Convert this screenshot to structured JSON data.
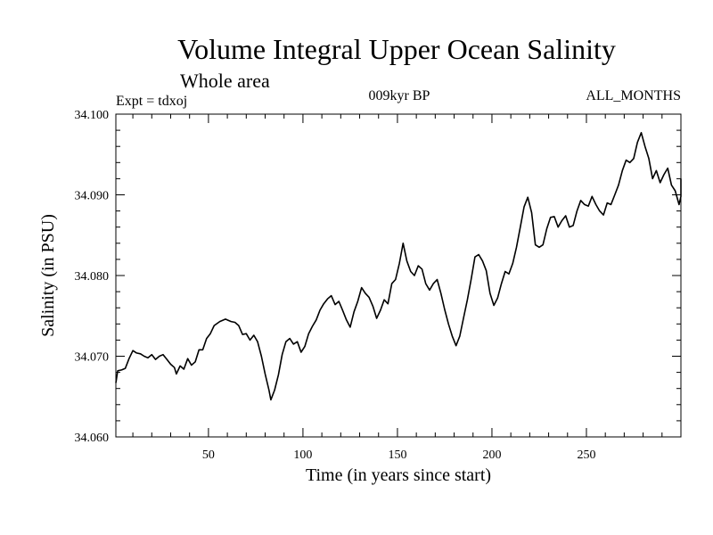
{
  "chart_data": {
    "type": "line",
    "title": "Volume Integral Upper Ocean Salinity",
    "subtitle": "Whole area",
    "expt_label": "Expt = tdxoj",
    "period_label": "009kyr BP",
    "months_label": "ALL_MONTHS",
    "xlabel": "Time (in years since start)",
    "ylabel": "Salinity (in PSU)",
    "xlim": [
      1,
      300
    ],
    "ylim": [
      34.06,
      34.1
    ],
    "x_ticks": [
      50,
      100,
      150,
      200,
      250
    ],
    "x_tick_labels": [
      "50",
      "100",
      "150",
      "200",
      "250"
    ],
    "y_ticks": [
      34.06,
      34.07,
      34.08,
      34.09,
      34.1
    ],
    "y_tick_labels": [
      "34.060",
      "34.070",
      "34.080",
      "34.090",
      "34.100"
    ],
    "grid": false,
    "series": [
      {
        "color": "#000000",
        "points": [
          [
            1,
            34.0667
          ],
          [
            2,
            34.0682
          ],
          [
            4,
            34.0683
          ],
          [
            6,
            34.0685
          ],
          [
            8,
            34.0697
          ],
          [
            10,
            34.0707
          ],
          [
            12,
            34.0704
          ],
          [
            14,
            34.0703
          ],
          [
            16,
            34.07
          ],
          [
            18,
            34.0698
          ],
          [
            20,
            34.0702
          ],
          [
            22,
            34.0696
          ],
          [
            24,
            34.07
          ],
          [
            26,
            34.0702
          ],
          [
            28,
            34.0696
          ],
          [
            30,
            34.069
          ],
          [
            32,
            34.0686
          ],
          [
            33,
            34.0678
          ],
          [
            35,
            34.0688
          ],
          [
            37,
            34.0684
          ],
          [
            39,
            34.0697
          ],
          [
            41,
            34.0689
          ],
          [
            43,
            34.0693
          ],
          [
            45,
            34.0708
          ],
          [
            47,
            34.0708
          ],
          [
            49,
            34.0722
          ],
          [
            51,
            34.0728
          ],
          [
            53,
            34.0738
          ],
          [
            56,
            34.0743
          ],
          [
            59,
            34.0746
          ],
          [
            62,
            34.0743
          ],
          [
            64,
            34.0742
          ],
          [
            66,
            34.0738
          ],
          [
            68,
            34.0727
          ],
          [
            70,
            34.0728
          ],
          [
            72,
            34.072
          ],
          [
            74,
            34.0726
          ],
          [
            76,
            34.0718
          ],
          [
            78,
            34.07
          ],
          [
            80,
            34.0678
          ],
          [
            82,
            34.0658
          ],
          [
            83,
            34.0646
          ],
          [
            85,
            34.0658
          ],
          [
            87,
            34.0677
          ],
          [
            89,
            34.0702
          ],
          [
            91,
            34.0718
          ],
          [
            93,
            34.0722
          ],
          [
            95,
            34.0715
          ],
          [
            97,
            34.0718
          ],
          [
            99,
            34.0705
          ],
          [
            101,
            34.0712
          ],
          [
            103,
            34.0728
          ],
          [
            105,
            34.0737
          ],
          [
            107,
            34.0745
          ],
          [
            109,
            34.0757
          ],
          [
            111,
            34.0765
          ],
          [
            113,
            34.0771
          ],
          [
            115,
            34.0775
          ],
          [
            117,
            34.0764
          ],
          [
            119,
            34.0768
          ],
          [
            121,
            34.0757
          ],
          [
            123,
            34.0745
          ],
          [
            125,
            34.0736
          ],
          [
            127,
            34.0755
          ],
          [
            129,
            34.0768
          ],
          [
            131,
            34.0785
          ],
          [
            133,
            34.0778
          ],
          [
            135,
            34.0773
          ],
          [
            137,
            34.0762
          ],
          [
            139,
            34.0747
          ],
          [
            141,
            34.0757
          ],
          [
            143,
            34.077
          ],
          [
            145,
            34.0765
          ],
          [
            147,
            34.079
          ],
          [
            149,
            34.0795
          ],
          [
            151,
            34.0815
          ],
          [
            153,
            34.084
          ],
          [
            155,
            34.0818
          ],
          [
            157,
            34.0805
          ],
          [
            159,
            34.08
          ],
          [
            161,
            34.0812
          ],
          [
            163,
            34.0808
          ],
          [
            165,
            34.079
          ],
          [
            167,
            34.0782
          ],
          [
            169,
            34.079
          ],
          [
            171,
            34.0795
          ],
          [
            173,
            34.0778
          ],
          [
            175,
            34.0758
          ],
          [
            177,
            34.074
          ],
          [
            179,
            34.0725
          ],
          [
            181,
            34.0713
          ],
          [
            183,
            34.0725
          ],
          [
            185,
            34.0748
          ],
          [
            187,
            34.077
          ],
          [
            189,
            34.0795
          ],
          [
            191,
            34.0823
          ],
          [
            193,
            34.0826
          ],
          [
            195,
            34.0818
          ],
          [
            197,
            34.0806
          ],
          [
            199,
            34.0778
          ],
          [
            201,
            34.0763
          ],
          [
            203,
            34.0772
          ],
          [
            205,
            34.079
          ],
          [
            207,
            34.0805
          ],
          [
            209,
            34.0802
          ],
          [
            211,
            34.0815
          ],
          [
            213,
            34.0835
          ],
          [
            215,
            34.086
          ],
          [
            217,
            34.0885
          ],
          [
            219,
            34.0897
          ],
          [
            221,
            34.0878
          ],
          [
            223,
            34.0838
          ],
          [
            225,
            34.0835
          ],
          [
            227,
            34.0838
          ],
          [
            229,
            34.0858
          ],
          [
            231,
            34.0872
          ],
          [
            233,
            34.0873
          ],
          [
            235,
            34.086
          ],
          [
            237,
            34.0868
          ],
          [
            239,
            34.0874
          ],
          [
            241,
            34.086
          ],
          [
            243,
            34.0862
          ],
          [
            245,
            34.088
          ],
          [
            247,
            34.0893
          ],
          [
            249,
            34.0888
          ],
          [
            251,
            34.0886
          ],
          [
            253,
            34.0898
          ],
          [
            255,
            34.0888
          ],
          [
            257,
            34.088
          ],
          [
            259,
            34.0875
          ],
          [
            261,
            34.089
          ],
          [
            263,
            34.0888
          ],
          [
            265,
            34.09
          ],
          [
            267,
            34.0912
          ],
          [
            269,
            34.093
          ],
          [
            271,
            34.0943
          ],
          [
            273,
            34.094
          ],
          [
            275,
            34.0945
          ],
          [
            277,
            34.0965
          ],
          [
            279,
            34.0977
          ],
          [
            281,
            34.096
          ],
          [
            283,
            34.0945
          ],
          [
            285,
            34.092
          ],
          [
            287,
            34.093
          ],
          [
            289,
            34.0915
          ],
          [
            291,
            34.0925
          ],
          [
            293,
            34.0933
          ],
          [
            295,
            34.0912
          ],
          [
            297,
            34.0905
          ],
          [
            299,
            34.0888
          ],
          [
            300,
            34.0898
          ],
          [
            303,
            34.092
          ]
        ]
      }
    ]
  }
}
